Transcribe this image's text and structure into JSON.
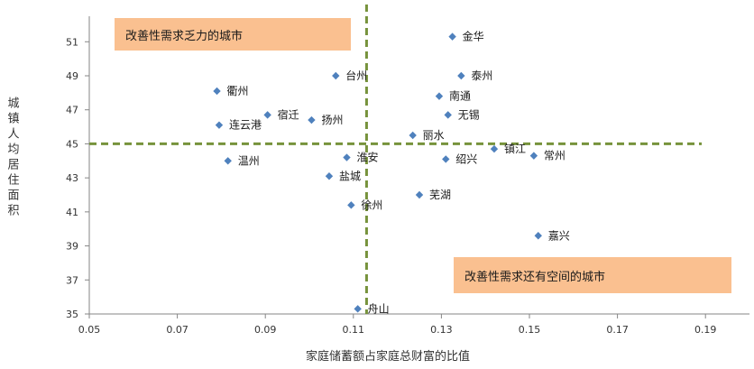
{
  "chart_data": {
    "type": "scatter",
    "title": "",
    "xlabel": "家庭储蓄额占家庭总财富的比值",
    "ylabel": "城镇人均居住面积",
    "xlim": [
      0.05,
      0.2
    ],
    "ylim": [
      35,
      52.5
    ],
    "x_ticks": [
      "0.05",
      "0.07",
      "0.09",
      "0.11",
      "0.13",
      "0.15",
      "0.17",
      "0.19"
    ],
    "y_ticks": [
      "35",
      "37",
      "39",
      "41",
      "43",
      "45",
      "47",
      "49",
      "51"
    ],
    "grid": false,
    "marker_color": "#4f81bd",
    "divider_color": "#77933c",
    "points": [
      {
        "label": "金华",
        "x": 0.1325,
        "y": 51.3
      },
      {
        "label": "台州",
        "x": 0.106,
        "y": 49.0
      },
      {
        "label": "泰州",
        "x": 0.1345,
        "y": 49.0
      },
      {
        "label": "衢州",
        "x": 0.079,
        "y": 48.1
      },
      {
        "label": "南通",
        "x": 0.1295,
        "y": 47.8
      },
      {
        "label": "宿迁",
        "x": 0.0905,
        "y": 46.7
      },
      {
        "label": "扬州",
        "x": 0.1005,
        "y": 46.4
      },
      {
        "label": "无锡",
        "x": 0.1315,
        "y": 46.7
      },
      {
        "label": "连云港",
        "x": 0.0795,
        "y": 46.1
      },
      {
        "label": "丽水",
        "x": 0.1235,
        "y": 45.5
      },
      {
        "label": "镇江",
        "x": 0.142,
        "y": 44.7
      },
      {
        "label": "淮安",
        "x": 0.1085,
        "y": 44.2
      },
      {
        "label": "温州",
        "x": 0.0815,
        "y": 44.0
      },
      {
        "label": "绍兴",
        "x": 0.131,
        "y": 44.1
      },
      {
        "label": "常州",
        "x": 0.151,
        "y": 44.3
      },
      {
        "label": "盐城",
        "x": 0.1045,
        "y": 43.1
      },
      {
        "label": "芜湖",
        "x": 0.125,
        "y": 42.0
      },
      {
        "label": "徐州",
        "x": 0.1095,
        "y": 41.4
      },
      {
        "label": "嘉兴",
        "x": 0.152,
        "y": 39.6
      },
      {
        "label": "舟山",
        "x": 0.111,
        "y": 35.3
      }
    ],
    "dividers": {
      "x": 0.113,
      "y": 45.0
    },
    "annotations": [
      {
        "text": "改善性需求乏力的城市",
        "position": "top-left"
      },
      {
        "text": "改善性需求还有空间的城市",
        "position": "bottom-right"
      }
    ]
  }
}
